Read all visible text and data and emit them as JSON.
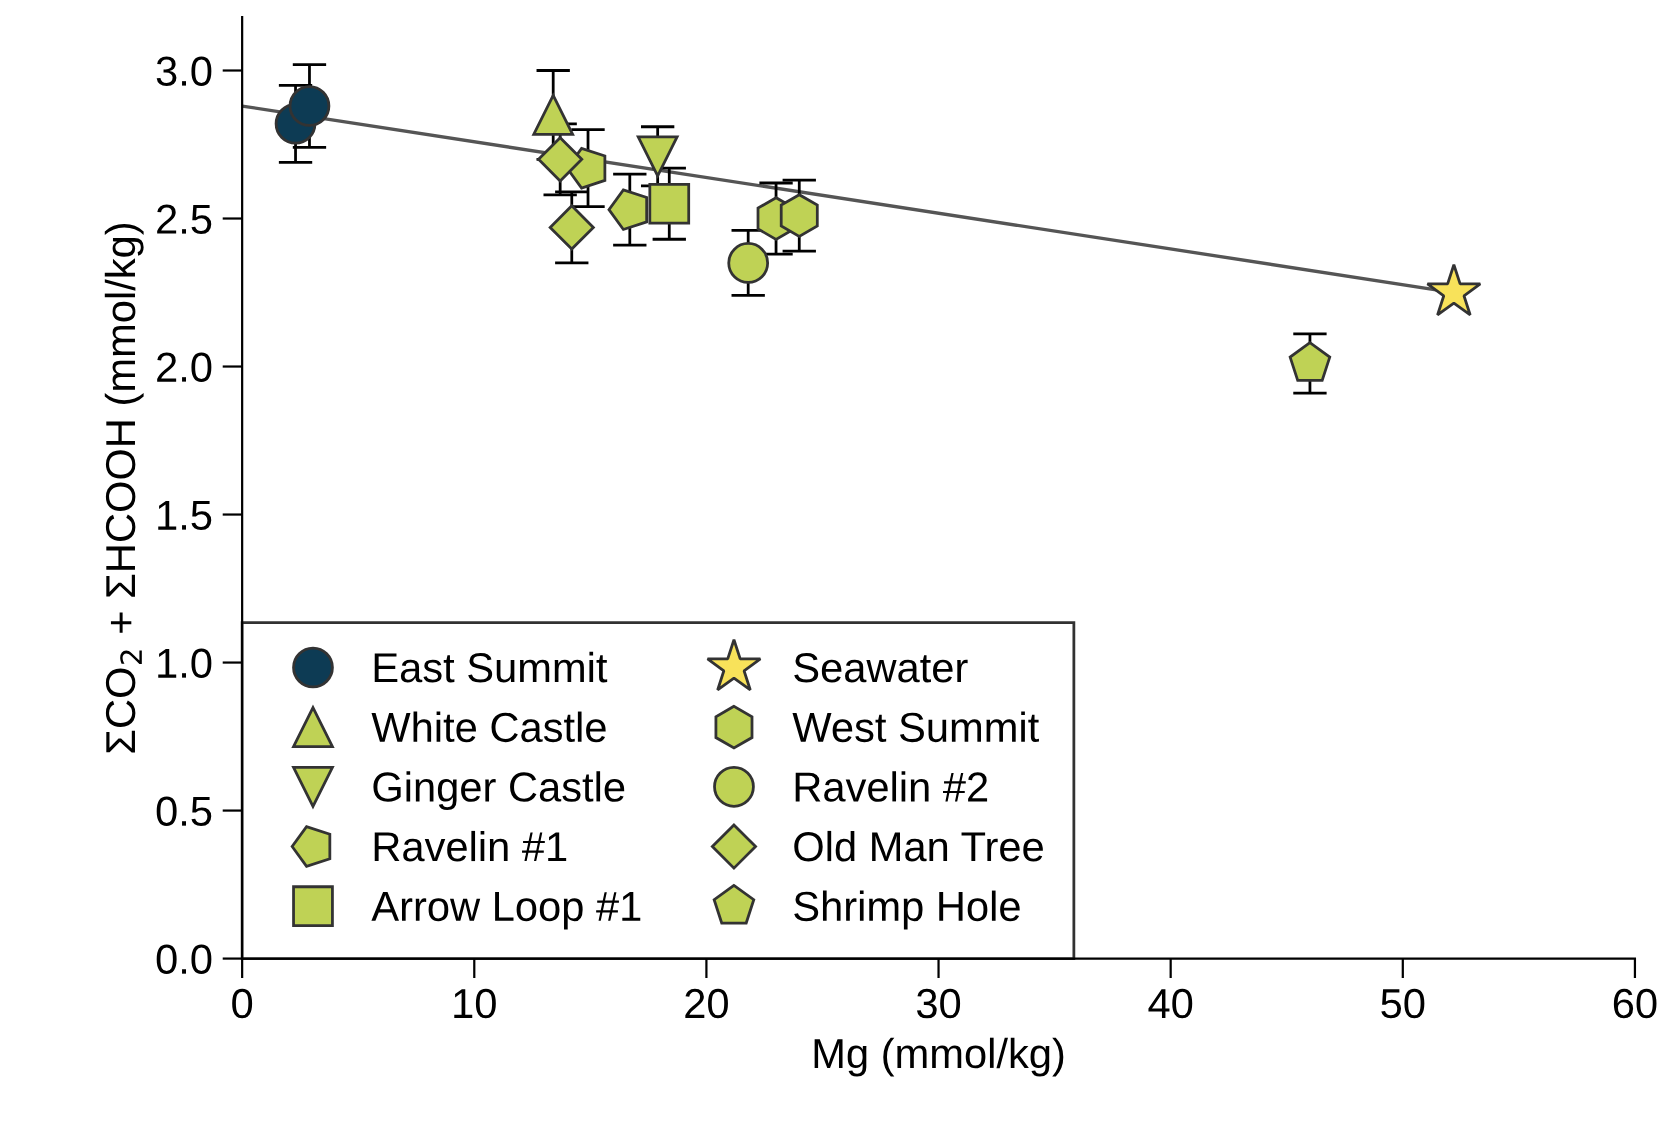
{
  "chart_data": {
    "type": "scatter",
    "xlabel": "Mg (mmol/kg)",
    "ylabel": "ΣCO$_{2}$ + ΣHCOOH (mmol/kg)",
    "xlim": [
      0,
      60
    ],
    "xticks": [
      0,
      10,
      20,
      30,
      40,
      50,
      60
    ],
    "ylim": [
      0,
      3.18
    ],
    "yticks": [
      {
        "value": 0,
        "label": "0.0"
      },
      {
        "value": 0.5,
        "label": "0.5"
      },
      {
        "value": 1,
        "label": "1.0"
      },
      {
        "value": 1.5,
        "label": "1.5"
      },
      {
        "value": 2,
        "label": "2.0"
      },
      {
        "value": 2.5,
        "label": "2.5"
      },
      {
        "value": 3,
        "label": "3.0"
      }
    ],
    "grid": false,
    "legend": "bottom left",
    "series": [
      {
        "type": "line",
        "x": [
          0,
          52.2
        ],
        "values": [
          2.88,
          2.25
        ],
        "color": "#555555",
        "marker": "none",
        "line_style": "solid"
      },
      {
        "name": "East Summit",
        "marker": "circle",
        "color": "#0d3b54",
        "x": [
          2.3,
          2.9
        ],
        "values": [
          2.82,
          2.88
        ],
        "errors": [
          0.13,
          0.14
        ]
      },
      {
        "name": "White Castle",
        "marker": "triangle",
        "color": "#bfd255",
        "x": [
          13.4
        ],
        "values": [
          2.85
        ],
        "errors": [
          0.15
        ]
      },
      {
        "name": "Ginger Castle",
        "marker": "triangle_down",
        "color": "#bfd255",
        "x": [
          17.9
        ],
        "values": [
          2.71
        ],
        "errors": [
          0.1
        ]
      },
      {
        "name": "Ravelin #1",
        "color": "#bfd255",
        "x": [
          14.9,
          16.7
        ],
        "values": [
          2.67,
          2.53
        ],
        "errors": [
          0.13,
          0.12
        ]
      },
      {
        "name": "Arrow Loop #1",
        "marker": "square",
        "color": "#bfd255",
        "x": [
          18.4
        ],
        "values": [
          2.55
        ],
        "errors": [
          0.12
        ]
      },
      {
        "name": "Seawater",
        "marker": "star",
        "color": "#f8e25a",
        "x": [
          52.2
        ],
        "values": [
          2.25
        ]
      },
      {
        "name": "West Summit",
        "color": "#bfd255",
        "x": [
          23.0,
          24.0
        ],
        "values": [
          2.5,
          2.51
        ],
        "errors": [
          0.12,
          0.12
        ]
      },
      {
        "name": "Ravelin #2",
        "marker": "circle",
        "color": "#bfd255",
        "x": [
          21.8
        ],
        "values": [
          2.35
        ],
        "errors": [
          0.11
        ]
      },
      {
        "name": "Old Man Tree",
        "marker": "diamond",
        "color": "#bfd255",
        "x": [
          13.7,
          14.2
        ],
        "values": [
          2.7,
          2.47
        ],
        "errors": [
          0.12,
          0.12
        ]
      },
      {
        "name": "Shrimp Hole",
        "color": "#bfd255",
        "x": [
          46.0
        ],
        "values": [
          2.01
        ],
        "errors": [
          0.1
        ]
      }
    ]
  }
}
